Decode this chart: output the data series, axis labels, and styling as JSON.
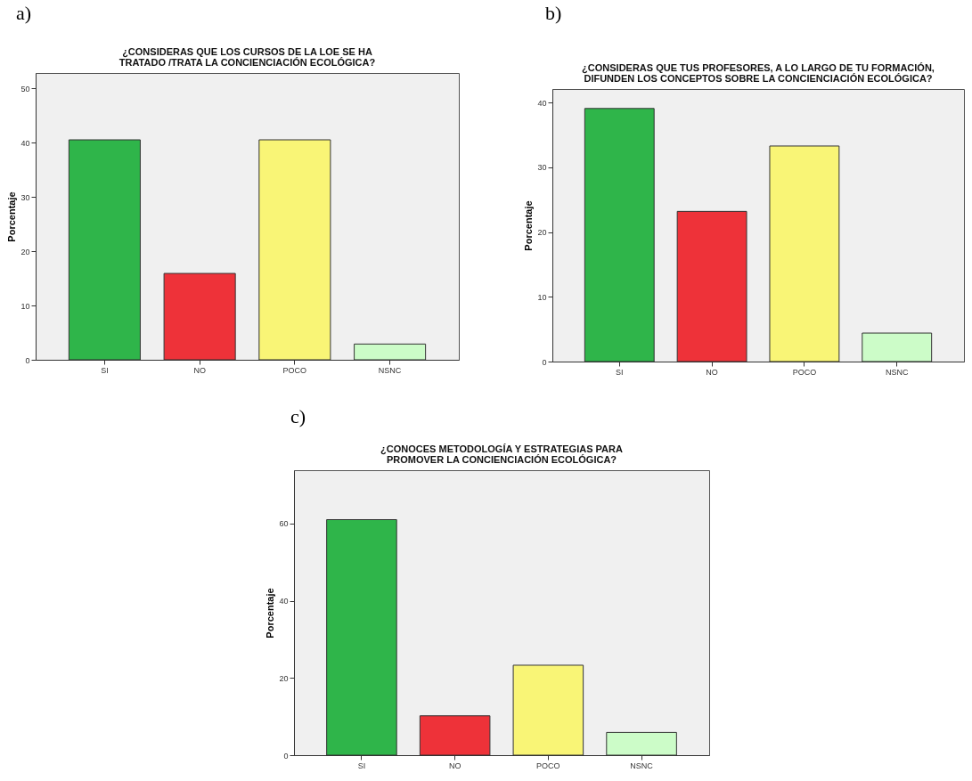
{
  "chart_data": [
    {
      "type": "bar",
      "annotations": [
        "a)"
      ],
      "title": "¿CONSIDERAS QUE LOS CURSOS DE LA LOE SE HA TRATADO /TRATA LA CONCIENCIACIÓN ECOLÓGICA?",
      "ylabel": "Porcentaje",
      "categories": [
        "SI",
        "NO",
        "POCO",
        "NSNC"
      ],
      "values": [
        40.5,
        15.9,
        40.5,
        2.9
      ],
      "colors": [
        "#2fb54a",
        "#ee3239",
        "#f9f576",
        "#ccfcc8"
      ],
      "ylim": [
        0,
        52.8
      ],
      "yticks": [
        0,
        10,
        20,
        30,
        40,
        50
      ],
      "grid": false
    },
    {
      "type": "bar",
      "annotations": [
        "b)"
      ],
      "title": "¿CONSIDERAS QUE TUS PROFESORES, A LO LARGO DE TU FORMACIÓN, DIFUNDEN LOS CONCEPTOS SOBRE LA CONCIENCIACIÓN ECOLÓGICA?",
      "ylabel": "Porcentaje",
      "categories": [
        "SI",
        "NO",
        "POCO",
        "NSNC"
      ],
      "values": [
        39.1,
        23.2,
        33.3,
        4.4
      ],
      "colors": [
        "#2fb54a",
        "#ee3239",
        "#f9f576",
        "#ccfcc8"
      ],
      "ylim": [
        0,
        42.1
      ],
      "yticks": [
        0,
        10,
        20,
        30,
        40
      ],
      "grid": false
    },
    {
      "type": "bar",
      "annotations": [
        "c)"
      ],
      "title": "¿CONOCES METODOLOGÍA Y ESTRATEGIAS PARA PROMOVER LA CONCIENCIACIÓN ECOLÓGICA?",
      "ylabel": "Porcentaje",
      "categories": [
        "SI",
        "NO",
        "POCO",
        "NSNC"
      ],
      "values": [
        61.0,
        10.2,
        23.3,
        5.9
      ],
      "colors": [
        "#2fb54a",
        "#ee3239",
        "#f9f576",
        "#ccfcc8"
      ],
      "ylim": [
        0,
        73.8
      ],
      "yticks": [
        0,
        20,
        40,
        60
      ],
      "grid": false
    }
  ]
}
